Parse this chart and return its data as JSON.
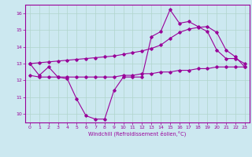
{
  "xlabel": "Windchill (Refroidissement éolien,°C)",
  "bg_color": "#cce8f0",
  "grid_color": "#b0d4cc",
  "line_color": "#990099",
  "x_hours": [
    0,
    1,
    2,
    3,
    4,
    5,
    6,
    7,
    8,
    9,
    10,
    11,
    12,
    13,
    14,
    15,
    16,
    17,
    18,
    19,
    20,
    21,
    22,
    23
  ],
  "curve_a_y": [
    13.0,
    12.3,
    12.8,
    12.2,
    12.1,
    10.9,
    9.9,
    9.7,
    9.7,
    11.4,
    12.2,
    12.2,
    12.2,
    14.6,
    14.9,
    16.2,
    15.4,
    15.5,
    15.2,
    14.9,
    13.8,
    13.3,
    13.3,
    13.0
  ],
  "curve_b_y": [
    12.3,
    12.2,
    12.2,
    12.2,
    12.2,
    12.2,
    12.2,
    12.2,
    12.2,
    12.2,
    12.3,
    12.3,
    12.4,
    12.4,
    12.5,
    12.5,
    12.6,
    12.6,
    12.7,
    12.7,
    12.8,
    12.8,
    12.8,
    12.8
  ],
  "curve_c_y": [
    13.0,
    13.05,
    13.1,
    13.15,
    13.2,
    13.25,
    13.3,
    13.35,
    13.4,
    13.45,
    13.55,
    13.65,
    13.75,
    13.9,
    14.1,
    14.5,
    14.85,
    15.05,
    15.15,
    15.2,
    14.85,
    13.8,
    13.4,
    12.8
  ],
  "ylim": [
    9.5,
    16.5
  ],
  "xlim": [
    -0.5,
    23.5
  ],
  "yticks": [
    10,
    11,
    12,
    13,
    14,
    15,
    16
  ],
  "xticks": [
    0,
    1,
    2,
    3,
    4,
    5,
    6,
    7,
    8,
    9,
    10,
    11,
    12,
    13,
    14,
    15,
    16,
    17,
    18,
    19,
    20,
    21,
    22,
    23
  ]
}
